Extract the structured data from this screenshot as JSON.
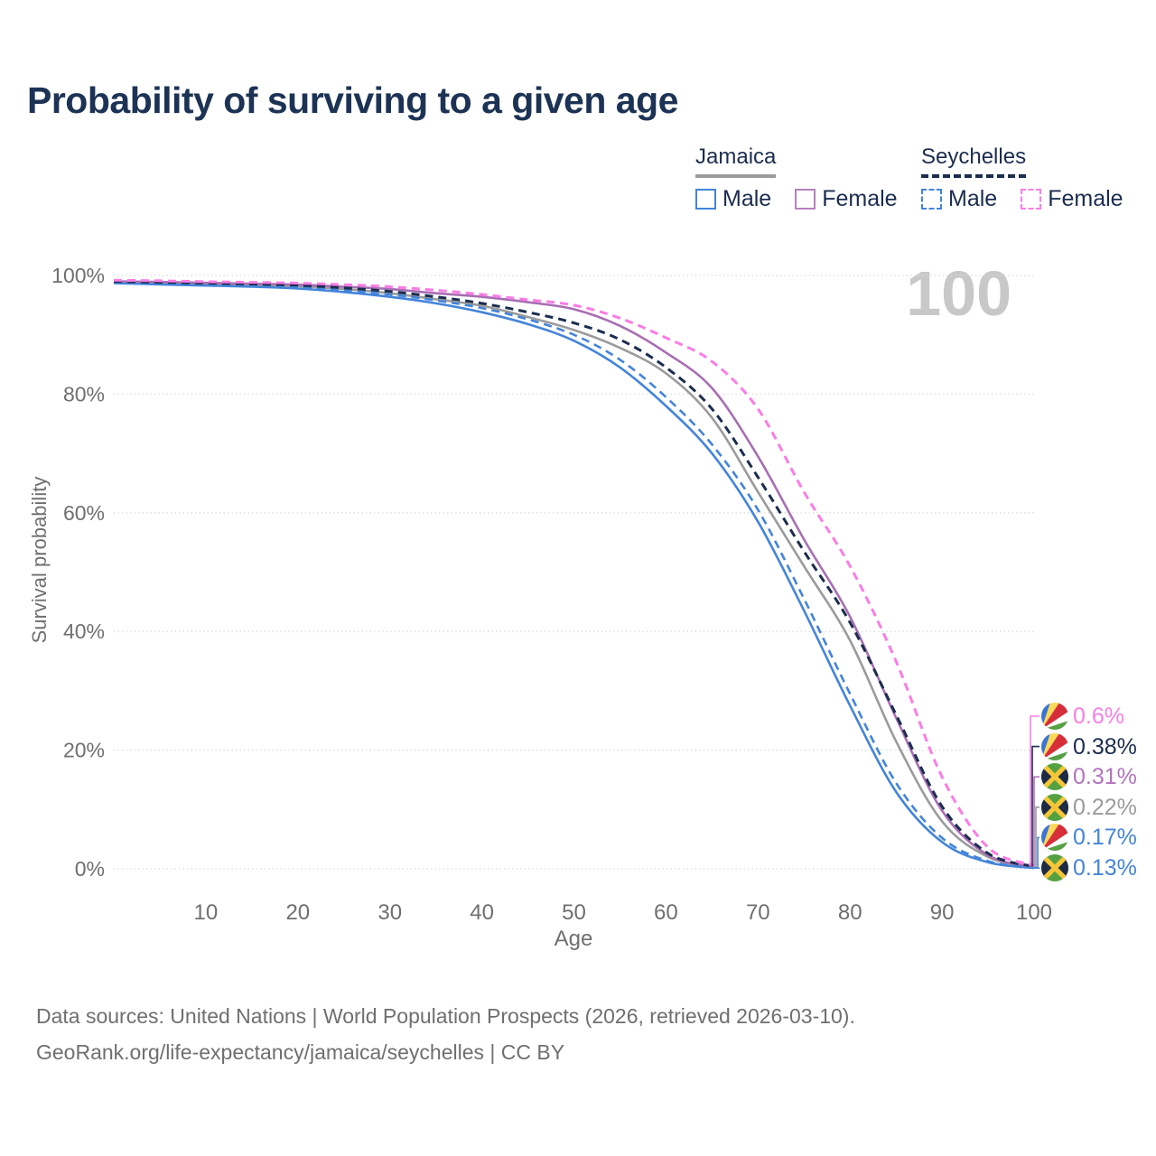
{
  "title": "Probability of surviving to a given age",
  "watermark": "100",
  "legend": {
    "groups": [
      {
        "name": "Jamaica",
        "rule_style": "solid",
        "rule_color": "#9b9b9b",
        "items": [
          {
            "label": "Male",
            "color": "#4484da",
            "dashed": false
          },
          {
            "label": "Female",
            "color": "#b77fc0",
            "dashed": false
          }
        ]
      },
      {
        "name": "Seychelles",
        "rule_style": "dashed",
        "rule_color": "#1b2d4f",
        "items": [
          {
            "label": "Male",
            "color": "#4484da",
            "dashed": true
          },
          {
            "label": "Female",
            "color": "#fb7ce5",
            "dashed": true
          }
        ]
      }
    ]
  },
  "chart_data": {
    "type": "line",
    "title": "Probability of surviving to a given age",
    "x_label": "Age",
    "y_label": "Survival probability",
    "x_range": [
      0,
      100
    ],
    "y_range": [
      0,
      100
    ],
    "x_ticks": [
      10,
      20,
      30,
      40,
      50,
      60,
      70,
      80,
      90,
      100
    ],
    "y_ticks": [
      {
        "value": 0,
        "label": "0%"
      },
      {
        "value": 20,
        "label": "20%"
      },
      {
        "value": 40,
        "label": "40%"
      },
      {
        "value": 60,
        "label": "60%"
      },
      {
        "value": 80,
        "label": "80%"
      },
      {
        "value": 100,
        "label": "100%"
      }
    ],
    "grid": "dotted-horizontal",
    "legend_position": "top-right",
    "ages": [
      0,
      5,
      10,
      15,
      20,
      25,
      30,
      35,
      40,
      45,
      50,
      55,
      60,
      65,
      70,
      75,
      80,
      85,
      90,
      95,
      100
    ],
    "series": [
      {
        "name": "Jamaica",
        "country": "jamaica",
        "sex": "both",
        "color": "#9b9b9b",
        "dashed": false,
        "width": 2.6,
        "end_value": 0.22,
        "end_label": "0.22%",
        "values": [
          98.9,
          98.75,
          98.6,
          98.45,
          98.2,
          97.7,
          97.0,
          96.0,
          94.9,
          93.0,
          90.8,
          87.8,
          83.5,
          76.0,
          63.5,
          51.0,
          38.5,
          21.5,
          8.0,
          2.0,
          0.22
        ]
      },
      {
        "name": "Jamaica Male",
        "country": "jamaica",
        "sex": "male",
        "color": "#4484da",
        "dashed": false,
        "width": 2.6,
        "end_value": 0.13,
        "end_label": "0.13%",
        "values": [
          98.7,
          98.5,
          98.3,
          98.1,
          97.8,
          97.2,
          96.4,
          95.3,
          93.8,
          91.8,
          89.0,
          84.5,
          78.0,
          70.0,
          58.5,
          43.5,
          27.5,
          13.0,
          4.5,
          1.1,
          0.13
        ]
      },
      {
        "name": "Jamaica Female",
        "country": "jamaica",
        "sex": "female",
        "color": "#a86eb4",
        "dashed": false,
        "width": 2.6,
        "end_value": 0.31,
        "end_label": "0.31%",
        "values": [
          99.0,
          98.9,
          98.75,
          98.6,
          98.45,
          98.1,
          97.7,
          97.0,
          96.4,
          95.5,
          94.3,
          91.5,
          87.0,
          81.0,
          69.5,
          55.5,
          42.5,
          25.5,
          9.8,
          2.3,
          0.31
        ]
      },
      {
        "name": "Seychelles Male",
        "country": "seychelles",
        "sex": "male",
        "color": "#4484da",
        "dashed": true,
        "width": 2.6,
        "end_value": 0.17,
        "end_label": "0.17%",
        "values": [
          98.8,
          98.65,
          98.5,
          98.3,
          98.05,
          97.5,
          96.8,
          95.8,
          94.5,
          92.6,
          90.0,
          85.8,
          79.5,
          71.5,
          60.5,
          45.5,
          29.5,
          14.5,
          5.2,
          1.3,
          0.17
        ]
      },
      {
        "name": "Seychelles",
        "country": "seychelles",
        "sex": "both",
        "color": "#1b2d4f",
        "dashed": true,
        "width": 3,
        "end_value": 0.38,
        "end_label": "0.38%",
        "values": [
          99.0,
          98.85,
          98.7,
          98.55,
          98.35,
          97.9,
          97.3,
          96.4,
          95.3,
          93.8,
          92.0,
          89.2,
          84.5,
          77.5,
          66.0,
          53.5,
          41.5,
          26.0,
          10.5,
          2.6,
          0.38
        ]
      },
      {
        "name": "Seychelles Female",
        "country": "seychelles",
        "sex": "female",
        "color": "#fb7ce5",
        "dashed": true,
        "width": 3,
        "end_value": 0.6,
        "end_label": "0.6%",
        "values": [
          99.2,
          99.1,
          98.95,
          98.85,
          98.7,
          98.45,
          98.1,
          97.5,
          96.8,
          95.9,
          95.0,
          92.8,
          89.5,
          85.5,
          77.5,
          63.5,
          51.0,
          35.0,
          15.5,
          3.6,
          0.6
        ]
      }
    ]
  },
  "end_labels": [
    {
      "value": "0.6%",
      "series": "Seychelles Female",
      "country": "seychelles",
      "color": "#fb7ce5"
    },
    {
      "value": "0.38%",
      "series": "Seychelles",
      "country": "seychelles",
      "color": "#1b2d4f"
    },
    {
      "value": "0.31%",
      "series": "Jamaica Female",
      "country": "jamaica",
      "color": "#b273bd"
    },
    {
      "value": "0.22%",
      "series": "Jamaica",
      "country": "jamaica",
      "color": "#9b9b9b"
    },
    {
      "value": "0.17%",
      "series": "Seychelles Male",
      "country": "seychelles",
      "color": "#4484da"
    },
    {
      "value": "0.13%",
      "series": "Jamaica Male",
      "country": "jamaica",
      "color": "#4484da"
    }
  ],
  "footer": {
    "line1": "Data sources: United Nations | World Population Prospects (2026, retrieved 2026-03-10).",
    "line2": "GeoRank.org/life-expectancy/jamaica/seychelles | CC BY"
  }
}
